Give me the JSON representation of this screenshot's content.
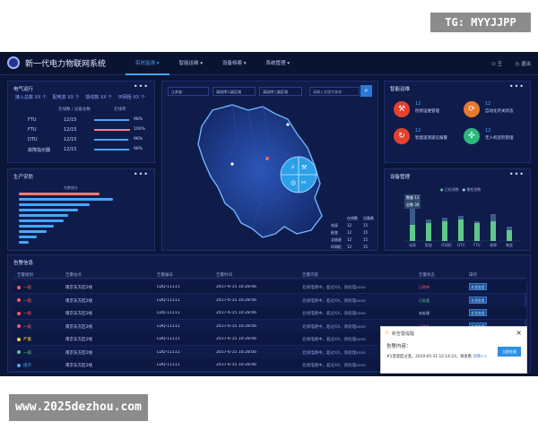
{
  "watermarks": {
    "top": "TG: MYYJJPP",
    "bottom": "www.2025dezhou.com"
  },
  "header": {
    "title": "新一代电力物联网系统",
    "nav": [
      "实时监测 ▾",
      "智能运维 ▾",
      "设备档案 ▾",
      "系统管理 ▾"
    ],
    "user": "⚇ 王",
    "exit": "◷ 退出"
  },
  "power_panel": {
    "title": "电气运行",
    "legend": [
      "接入总数 XX 个",
      "配电变 XX 个",
      "馈线数 XX 个",
      "环网柜 XX 个"
    ],
    "headers": [
      "在线数 / 设备总数",
      "在线率"
    ],
    "rows": [
      {
        "label": "FTU",
        "value": "12/15",
        "pct": "98%",
        "rate": 0.98,
        "color": "#49a6ff"
      },
      {
        "label": "FTU",
        "value": "12/15",
        "pct": "100%",
        "rate": 1.0,
        "color": "#ff7b8a"
      },
      {
        "label": "DTU",
        "value": "12/15",
        "pct": "96%",
        "rate": 0.96,
        "color": "#49a6ff"
      },
      {
        "label": "故障指示器",
        "value": "12/15",
        "pct": "98%",
        "rate": 0.98,
        "color": "#49a6ff"
      }
    ]
  },
  "prod_panel": {
    "title": "生产安防",
    "axis_label": "台数统计",
    "bars": [
      {
        "value": 0.82,
        "color": "#ff7b6b"
      },
      {
        "value": 0.95,
        "color": "#49a6ff"
      },
      {
        "value": 0.72,
        "color": "#49a6ff"
      },
      {
        "value": 0.6,
        "color": "#49a6ff"
      },
      {
        "value": 0.5,
        "color": "#49a6ff"
      },
      {
        "value": 0.45,
        "color": "#49a6ff"
      },
      {
        "value": 0.35,
        "color": "#49a6ff"
      },
      {
        "value": 0.28,
        "color": "#49a6ff"
      },
      {
        "value": 0.18,
        "color": "#49a6ff"
      },
      {
        "value": 0.1,
        "color": "#49a6ff"
      }
    ]
  },
  "map_panel": {
    "selects": [
      "江苏省",
      "请选择二级区域",
      "请选择三级区域"
    ],
    "search_placeholder": "请输入关键字查询",
    "table_headers": [
      "在线数",
      "设备数"
    ],
    "table_rows": [
      {
        "name": "电表",
        "a": "12",
        "b": "15"
      },
      {
        "name": "配变",
        "a": "12",
        "b": "15"
      },
      {
        "name": "北极星",
        "a": "12",
        "b": "15"
      },
      {
        "name": "环网柜",
        "a": "12",
        "b": "15"
      }
    ]
  },
  "smart_panel": {
    "title": "智能运维",
    "items": [
      {
        "num": "12",
        "label": "检修运维管理",
        "icon": "wrench-icon",
        "glyph": "⚒",
        "color": "#e4412f"
      },
      {
        "num": "12",
        "label": "自动化开关状态",
        "icon": "cycle-icon",
        "glyph": "⟳",
        "color": "#e87a2e"
      },
      {
        "num": "12",
        "label": "智能遥测遥信报警",
        "icon": "refresh-icon",
        "glyph": "↻",
        "color": "#e4412f"
      },
      {
        "num": "12",
        "label": "无人机巡检管理",
        "icon": "drone-icon",
        "glyph": "✣",
        "color": "#2cb77d"
      }
    ]
  },
  "equip_panel": {
    "title": "设备管理",
    "legend": [
      "已检测数",
      "需检测数"
    ],
    "badges": [
      "数量 12",
      "总数 36"
    ],
    "categories": [
      "电表",
      "配变",
      "环网柜",
      "DTU",
      "FTU",
      "故障",
      "箱变"
    ],
    "series": [
      {
        "name": "已检测数",
        "values": [
          18,
          20,
          22,
          24,
          20,
          22,
          12
        ],
        "color": "#5fc88a"
      },
      {
        "name": "需检测数",
        "values": [
          36,
          24,
          26,
          28,
          22,
          30,
          16
        ],
        "color": "#8ed4ff"
      }
    ]
  },
  "alerts_panel": {
    "title": "告警信息",
    "headers": [
      "告警级别",
      "告警站点",
      "告警编号",
      "告警时间",
      "告警内容",
      "告警状态",
      "操作"
    ],
    "rows": [
      {
        "level": "一级",
        "level_color": "#ff5b5b",
        "site": "南京东方区2线",
        "code": "LDQ-11111",
        "time": "2017-6-15 10:28:06",
        "content": "北线电路中，超过XX，请处理xxxx",
        "status": "已转单",
        "status_color": "#ff5b5b",
        "op": "处理查看"
      },
      {
        "level": "一级",
        "level_color": "#ff5b5b",
        "site": "南京东方区2线",
        "code": "LDQ-11111",
        "time": "2017-6-15 10:28:06",
        "content": "北线电路中，超过XX，请处理xxxx",
        "status": "已处理",
        "status_color": "#5fc88a",
        "op": "处理查看"
      },
      {
        "level": "一级",
        "level_color": "#ff5b5b",
        "site": "南京东方区2线",
        "code": "LDQ-11111",
        "time": "2017-6-15 10:28:06",
        "content": "北线电路中，超过XX，请处理xxxx",
        "status": "未处理",
        "status_color": "#c8d2ff",
        "op": "处理查看"
      },
      {
        "level": "一级",
        "level_color": "#ff5b5b",
        "site": "南京东方区2线",
        "code": "LDQ-11111",
        "time": "2017-6-15 10:28:06",
        "content": "北线电路中，超过XX，请处理xxxx",
        "status": "已转单",
        "status_color": "#ff5b5b",
        "op": "处理查看"
      },
      {
        "level": "严重",
        "level_color": "#ffd24a",
        "site": "南京东方区2线",
        "code": "LDQ-11111",
        "time": "2017-6-15 10:28:06",
        "content": "北线电路中，超过XX，请处理xxxx",
        "status": "已处理",
        "status_color": "#5fc88a",
        "op": "处理查看"
      },
      {
        "level": "一般",
        "level_color": "#5fc88a",
        "site": "南京东方区2线",
        "code": "LDQ-11111",
        "time": "2017-6-15 10:28:06",
        "content": "北线电路中，超过XX，请处理xxxx",
        "status": "未处理",
        "status_color": "#c8d2ff",
        "op": "处理查看"
      },
      {
        "level": "提示",
        "level_color": "#49a6ff",
        "site": "南京东方区2线",
        "code": "LDQ-11111",
        "time": "2017-6-15 10:28:06",
        "content": "北线电路中，超过XX，请处理xxxx",
        "status": "已处理",
        "status_color": "#5fc88a",
        "op": "处理查看"
      }
    ]
  },
  "toast": {
    "title": "新告警提醒",
    "subject": "告警内容：",
    "message": "#1温湿度过温，2019-05-31 12:14:23，请查看",
    "link": "详情>>",
    "button": "立即处理",
    "close": "×"
  }
}
